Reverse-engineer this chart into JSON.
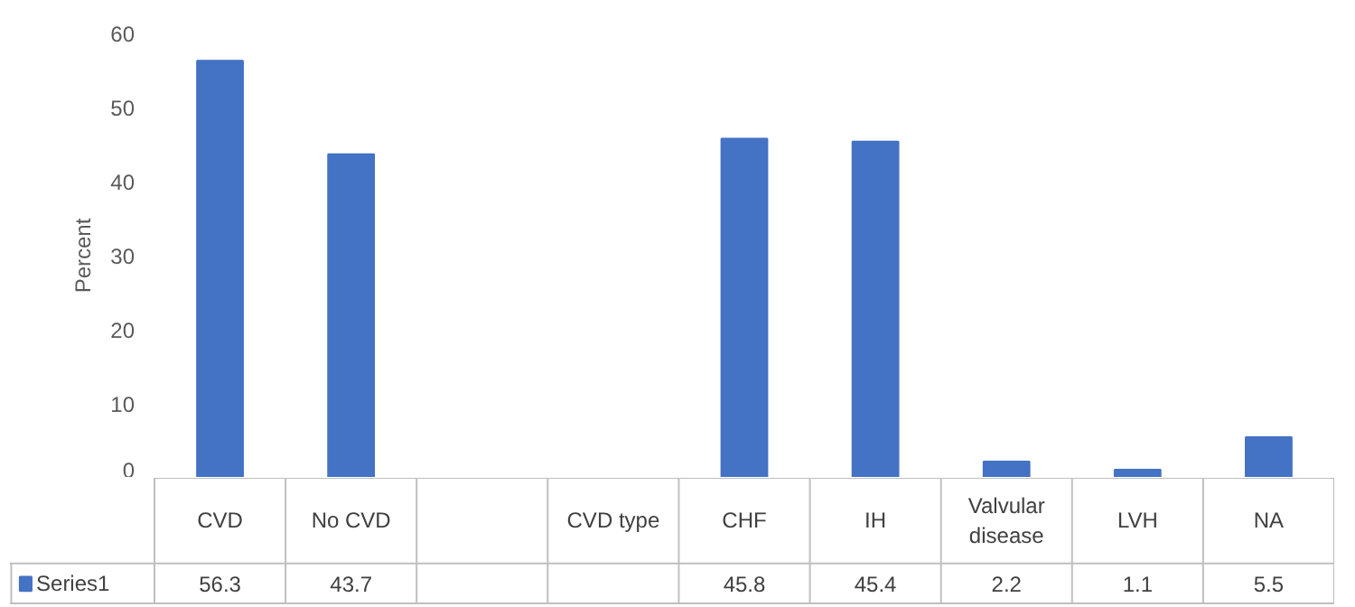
{
  "chart_data": {
    "type": "bar",
    "ylabel": "Percent",
    "categories": [
      "CVD",
      "No CVD",
      null,
      "CVD type",
      "CHF",
      "IH",
      "Valvular disease",
      "LVH",
      "NA"
    ],
    "series": [
      {
        "name": "Series1",
        "color": "#4472c4",
        "values": [
          56.3,
          43.7,
          null,
          null,
          45.8,
          45.4,
          2.2,
          1.1,
          5.5
        ]
      }
    ],
    "ylim": [
      0,
      60
    ],
    "yticks": [
      0,
      10,
      20,
      30,
      40,
      50,
      60
    ],
    "grid": false,
    "data_labels": true
  }
}
